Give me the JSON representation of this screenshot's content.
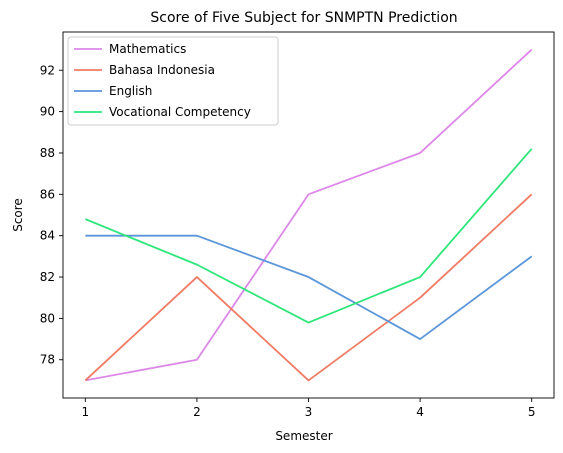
{
  "chart_data": {
    "type": "line",
    "title": "Score of Five Subject for SNMPTN Prediction",
    "xlabel": "Semester",
    "ylabel": "Score",
    "x": [
      1,
      2,
      3,
      4,
      5
    ],
    "xlim": [
      0.8,
      5.2
    ],
    "ylim": [
      76.15,
      93.85
    ],
    "yticks": [
      78,
      80,
      82,
      84,
      86,
      88,
      90,
      92
    ],
    "grid": false,
    "legend_position": "upper-left",
    "series": [
      {
        "name": "Mathematics",
        "color": "#dd88e8",
        "values": [
          77,
          78,
          86,
          88,
          93
        ]
      },
      {
        "name": "Bahasa Indonesia",
        "color": "#f07b63",
        "values": [
          77,
          82,
          77,
          81,
          86
        ]
      },
      {
        "name": "English",
        "color": "#5b96d9",
        "values": [
          84,
          84,
          82,
          79,
          83
        ]
      },
      {
        "name": "Vocational Competency",
        "color": "#2ee67a",
        "values": [
          84.8,
          82.6,
          79.8,
          82,
          88.2
        ]
      }
    ]
  }
}
